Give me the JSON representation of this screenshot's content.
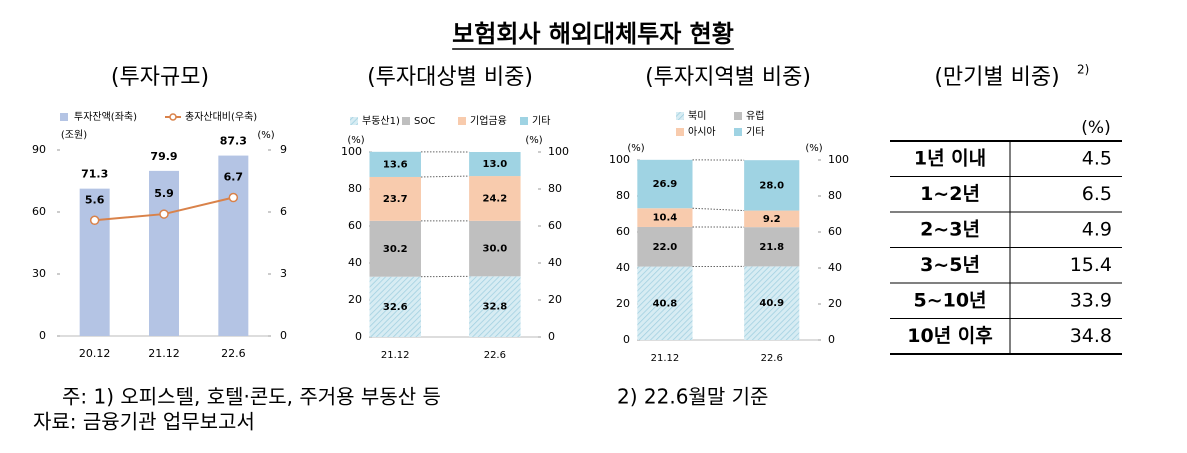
{
  "title": "보험회사 해외대체투자 현황",
  "chart_data": [
    {
      "type": "combo",
      "title": "(투자규모)",
      "categories": [
        "20.12",
        "21.12",
        "22.6"
      ],
      "ylabel": "(조원)",
      "y2label": "(%)",
      "ylim": [
        0,
        90
      ],
      "yticks": [
        0,
        30,
        60,
        90
      ],
      "y2lim": [
        0,
        9
      ],
      "y2ticks": [
        0,
        3,
        6,
        9
      ],
      "series": [
        {
          "name": "투자잔액(좌축)",
          "color": "#b4c4e4",
          "values": [
            71.3,
            79.9,
            87.3
          ]
        },
        {
          "name": "총자산대비(우축)",
          "color": "#d9824a",
          "axis": "y2",
          "values": [
            5.6,
            5.9,
            6.7
          ]
        }
      ]
    },
    {
      "type": "stacked-bar",
      "title": "(투자대상별 비중)",
      "categories": [
        "21.12",
        "22.6"
      ],
      "ylabel": "(%)",
      "y2label": "(%)",
      "ylim": [
        0,
        100
      ],
      "yticks": [
        0,
        20,
        40,
        60,
        80,
        100
      ],
      "y2lim": [
        0,
        100
      ],
      "y2ticks": [
        0,
        20,
        40,
        60,
        80,
        100
      ],
      "series": [
        {
          "name": "부동산1)",
          "color": "#b7dcea",
          "pattern": "hatch",
          "values": [
            32.6,
            32.8
          ]
        },
        {
          "name": "SOC",
          "color": "#bfbfbf",
          "values": [
            30.2,
            30.0
          ],
          "value_labels": [
            "30.2",
            "30.0"
          ]
        },
        {
          "name": "기업금융",
          "color": "#f8cbad",
          "values": [
            23.7,
            24.2
          ]
        },
        {
          "name": "기타",
          "color": "#9fd3e3",
          "values": [
            13.6,
            13.0
          ],
          "value_labels": [
            "13.6",
            "13.0"
          ]
        }
      ]
    },
    {
      "type": "stacked-bar",
      "title": "(투자지역별 비중)",
      "categories": [
        "21.12",
        "22.6"
      ],
      "ylabel": "(%)",
      "y2label": "(%)",
      "ylim": [
        0,
        100
      ],
      "yticks": [
        0,
        20,
        40,
        60,
        80,
        100
      ],
      "y2lim": [
        0,
        100
      ],
      "y2ticks": [
        0,
        20,
        40,
        60,
        80,
        100
      ],
      "series": [
        {
          "name": "북미",
          "color": "#b7dcea",
          "pattern": "hatch",
          "values": [
            40.8,
            40.9
          ]
        },
        {
          "name": "유럽",
          "color": "#bfbfbf",
          "values": [
            22.0,
            21.8
          ],
          "value_labels": [
            "22.0",
            "21.8"
          ]
        },
        {
          "name": "아시아",
          "color": "#f8cbad",
          "values": [
            10.4,
            9.2
          ]
        },
        {
          "name": "기타",
          "color": "#9fd3e3",
          "values": [
            26.9,
            28.0
          ],
          "value_labels": [
            "26.9",
            "28.0"
          ]
        }
      ]
    }
  ],
  "table": {
    "title": "(만기별 비중)",
    "title_note": "2)",
    "unit": "(%)",
    "rows": [
      [
        "1년 이내",
        4.5
      ],
      [
        "1~2년",
        6.5
      ],
      [
        "2~3년",
        4.9
      ],
      [
        "3~5년",
        15.4
      ],
      [
        "5~10년",
        33.9
      ],
      [
        "10년 이후",
        34.8
      ]
    ]
  },
  "notes": [
    "주: 1) 오피스텔, 호텔·콘도, 주거용 부동산 등",
    "2) 22.6월말 기준",
    "자료: 금융기관 업무보고서"
  ]
}
